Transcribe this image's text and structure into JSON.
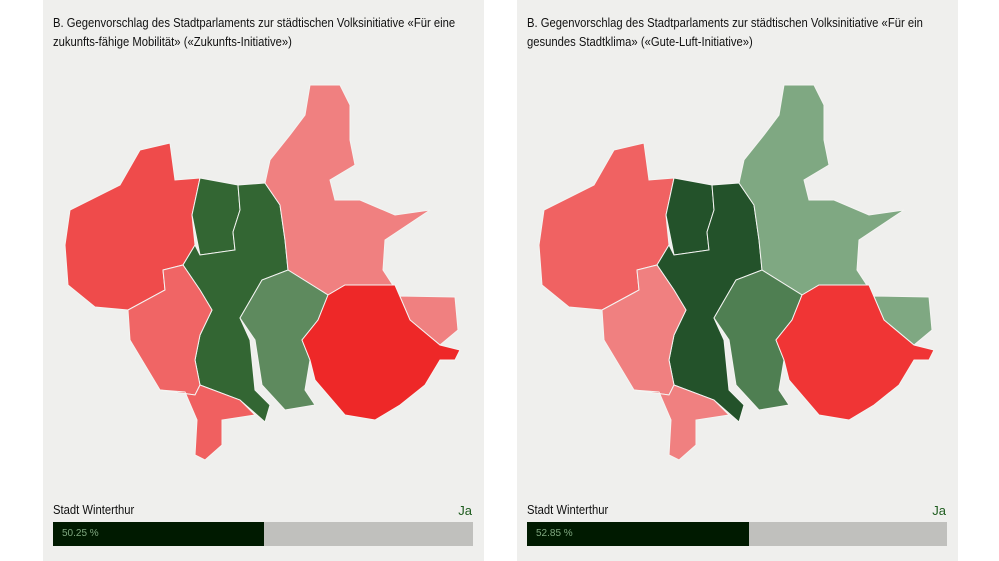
{
  "panels": [
    {
      "title": "B. Gegenvorschlag des Stadtparlaments zur städtischen Volksinitiative «Für eine zukunfts-fähige Mobilität» («Zukunfts-Initiative»)",
      "place": "Stadt Winterthur",
      "result": "Ja",
      "percent_label": "50.25 %",
      "percent": 50.25,
      "colors": {
        "west": "#ef4b4b",
        "north": "#336633",
        "center": "#336633",
        "southwest": "#f06565",
        "south": "#f06060",
        "northeast": "#f08080",
        "centereast": "#5e8a5e",
        "east": "#ee2828"
      }
    },
    {
      "title": "B. Gegenvorschlag des Stadtparlaments zur städtischen Volksinitiative «Für ein gesundes Stadtklima» («Gute-Luft-Initiative»)",
      "place": "Stadt Winterthur",
      "result": "Ja",
      "percent_label": "52.85 %",
      "percent": 52.85,
      "colors": {
        "west": "#f06262",
        "north": "#23522a",
        "center": "#23522a",
        "southwest": "#f08080",
        "south": "#f08080",
        "northeast": "#7fa882",
        "centereast": "#4f7f52",
        "east": "#f03535"
      }
    }
  ]
}
